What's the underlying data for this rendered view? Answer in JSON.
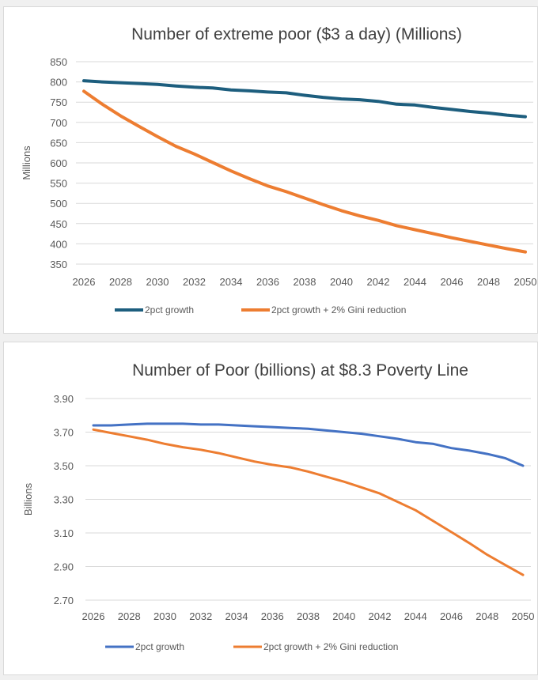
{
  "chart_data": [
    {
      "type": "line",
      "title": "Number of extreme poor ($3 a day) (Millions)",
      "xlabel": "",
      "ylabel": "Millions",
      "ylim": [
        350,
        850
      ],
      "yticks": [
        "850",
        "800",
        "750",
        "700",
        "650",
        "600",
        "550",
        "500",
        "450",
        "400",
        "350"
      ],
      "ytick_values": [
        850,
        800,
        750,
        700,
        650,
        600,
        550,
        500,
        450,
        400,
        350
      ],
      "xticks": [
        "2026",
        "2028",
        "2030",
        "2032",
        "2034",
        "2036",
        "2038",
        "2040",
        "2042",
        "2044",
        "2046",
        "2048",
        "2050"
      ],
      "x": [
        2026,
        2027,
        2028,
        2029,
        2030,
        2031,
        2032,
        2033,
        2034,
        2035,
        2036,
        2037,
        2038,
        2039,
        2040,
        2041,
        2042,
        2043,
        2044,
        2045,
        2046,
        2047,
        2048,
        2049,
        2050
      ],
      "grid": true,
      "legend_position": "bottom",
      "series": [
        {
          "name": "2pct growth",
          "color": "#1d5e7e",
          "values": [
            803,
            800,
            798,
            796,
            794,
            790,
            787,
            785,
            780,
            778,
            775,
            773,
            767,
            762,
            758,
            756,
            752,
            745,
            743,
            737,
            732,
            727,
            723,
            718,
            714
          ]
        },
        {
          "name": "2pct growth + 2% Gini reduction",
          "color": "#ed7d31",
          "values": [
            777,
            745,
            716,
            690,
            665,
            641,
            622,
            601,
            580,
            561,
            543,
            529,
            513,
            497,
            482,
            469,
            458,
            445,
            435,
            425,
            415,
            406,
            397,
            388,
            380
          ]
        }
      ]
    },
    {
      "type": "line",
      "title": "Number of Poor (billions) at $8.3 Poverty Line",
      "xlabel": "",
      "ylabel": "Billions",
      "ylim": [
        2.7,
        3.9
      ],
      "yticks": [
        "3.90",
        "3.70",
        "3.50",
        "3.30",
        "3.10",
        "2.90",
        "2.70"
      ],
      "ytick_values": [
        3.9,
        3.7,
        3.5,
        3.3,
        3.1,
        2.9,
        2.7
      ],
      "xticks": [
        "2026",
        "2028",
        "2030",
        "2032",
        "2034",
        "2036",
        "2038",
        "2040",
        "2042",
        "2044",
        "2046",
        "2048",
        "2050"
      ],
      "x": [
        2026,
        2027,
        2028,
        2029,
        2030,
        2031,
        2032,
        2033,
        2034,
        2035,
        2036,
        2037,
        2038,
        2039,
        2040,
        2041,
        2042,
        2043,
        2044,
        2045,
        2046,
        2047,
        2048,
        2049,
        2050
      ],
      "grid": true,
      "legend_position": "bottom",
      "series": [
        {
          "name": "2pct growth",
          "color": "#4472c4",
          "values": [
            3.74,
            3.74,
            3.745,
            3.75,
            3.75,
            3.75,
            3.745,
            3.745,
            3.74,
            3.735,
            3.73,
            3.725,
            3.72,
            3.71,
            3.7,
            3.69,
            3.675,
            3.66,
            3.64,
            3.63,
            3.605,
            3.59,
            3.57,
            3.545,
            3.5
          ]
        },
        {
          "name": "2pct growth + 2% Gini reduction",
          "color": "#ed7d31",
          "values": [
            3.715,
            3.695,
            3.675,
            3.655,
            3.63,
            3.61,
            3.595,
            3.575,
            3.55,
            3.525,
            3.505,
            3.49,
            3.465,
            3.435,
            3.405,
            3.37,
            3.335,
            3.285,
            3.235,
            3.17,
            3.105,
            3.04,
            2.97,
            2.91,
            2.85
          ]
        }
      ]
    }
  ]
}
